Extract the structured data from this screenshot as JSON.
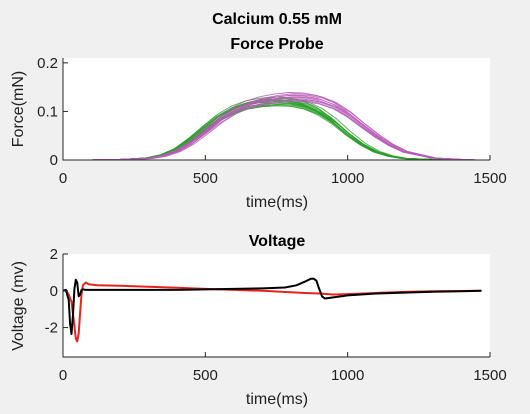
{
  "chart_data": [
    {
      "type": "line",
      "title_lines": [
        "Calcium 0.55 mM",
        "Force Probe"
      ],
      "xlabel": "time(ms)",
      "ylabel": "Force(mN)",
      "xlim": [
        0,
        1500
      ],
      "ylim": [
        0,
        0.21
      ],
      "xticks": [
        0,
        500,
        1000,
        1500
      ],
      "xtick_labels": [
        "0",
        "500",
        "1000",
        "1500"
      ],
      "yticks": [
        0,
        0.1,
        0.2
      ],
      "ytick_labels": [
        "0",
        "0.1",
        "0.2"
      ],
      "grid": false,
      "series": [
        {
          "color": "#2ca02c",
          "trace_count": 14,
          "x": [
            0,
            100,
            200,
            300,
            350,
            400,
            450,
            500,
            550,
            600,
            650,
            700,
            750,
            800,
            850,
            900,
            950,
            1000,
            1050,
            1100,
            1150,
            1200,
            1300,
            1400,
            1450
          ],
          "y": [
            0,
            0,
            0.001,
            0.004,
            0.01,
            0.022,
            0.042,
            0.065,
            0.087,
            0.103,
            0.113,
            0.118,
            0.12,
            0.119,
            0.113,
            0.1,
            0.08,
            0.055,
            0.033,
            0.017,
            0.008,
            0.003,
            0.001,
            0,
            0
          ]
        },
        {
          "color": "#b85ab8",
          "trace_count": 10,
          "x": [
            0,
            100,
            200,
            300,
            350,
            400,
            450,
            500,
            550,
            600,
            650,
            700,
            750,
            800,
            850,
            900,
            950,
            1000,
            1050,
            1100,
            1150,
            1200,
            1300,
            1400,
            1450
          ],
          "y": [
            0,
            0,
            0.001,
            0.003,
            0.008,
            0.018,
            0.035,
            0.058,
            0.082,
            0.101,
            0.114,
            0.122,
            0.127,
            0.13,
            0.129,
            0.124,
            0.113,
            0.095,
            0.072,
            0.05,
            0.031,
            0.017,
            0.004,
            0.001,
            0
          ]
        }
      ]
    },
    {
      "type": "line",
      "title": "Voltage",
      "xlabel": "time(ms)",
      "ylabel": "Voltage (mv)",
      "xlim": [
        0,
        1500
      ],
      "ylim": [
        -3.6,
        2
      ],
      "xticks": [
        0,
        500,
        1000,
        1500
      ],
      "xtick_labels": [
        "0",
        "500",
        "1000",
        "1500"
      ],
      "yticks": [
        -2,
        0,
        2
      ],
      "ytick_labels": [
        "-2",
        "0",
        "2"
      ],
      "grid": false,
      "series": [
        {
          "color": "#e8231d",
          "x": [
            0,
            10,
            20,
            30,
            40,
            45,
            50,
            55,
            60,
            65,
            70,
            80,
            90,
            120,
            200,
            300,
            400,
            500,
            600,
            700,
            800,
            850,
            900,
            950,
            1000,
            1100,
            1200,
            1300,
            1400,
            1470
          ],
          "y": [
            0,
            0.05,
            -0.2,
            -0.6,
            -1.9,
            -2.6,
            -2.75,
            -2.3,
            -1.2,
            -0.2,
            0.3,
            0.45,
            0.35,
            0.3,
            0.27,
            0.22,
            0.17,
            0.1,
            0.05,
            0.0,
            -0.08,
            -0.12,
            -0.15,
            -0.2,
            -0.18,
            -0.12,
            -0.06,
            -0.03,
            -0.01,
            0
          ]
        },
        {
          "color": "#000000",
          "x": [
            0,
            10,
            20,
            25,
            30,
            35,
            40,
            45,
            50,
            55,
            60,
            65,
            70,
            80,
            100,
            200,
            400,
            600,
            700,
            780,
            820,
            850,
            870,
            880,
            890,
            900,
            910,
            920,
            940,
            1000,
            1100,
            1200,
            1300,
            1400,
            1470
          ],
          "y": [
            0,
            0.05,
            -0.5,
            -1.8,
            -2.35,
            -1.3,
            0.1,
            0.6,
            0.45,
            -0.3,
            -0.2,
            0.05,
            0.08,
            0.05,
            0.05,
            0.05,
            0.05,
            0.1,
            0.13,
            0.18,
            0.3,
            0.5,
            0.65,
            0.66,
            0.55,
            0.1,
            -0.3,
            -0.42,
            -0.38,
            -0.25,
            -0.15,
            -0.1,
            -0.05,
            -0.02,
            0
          ]
        }
      ]
    }
  ]
}
